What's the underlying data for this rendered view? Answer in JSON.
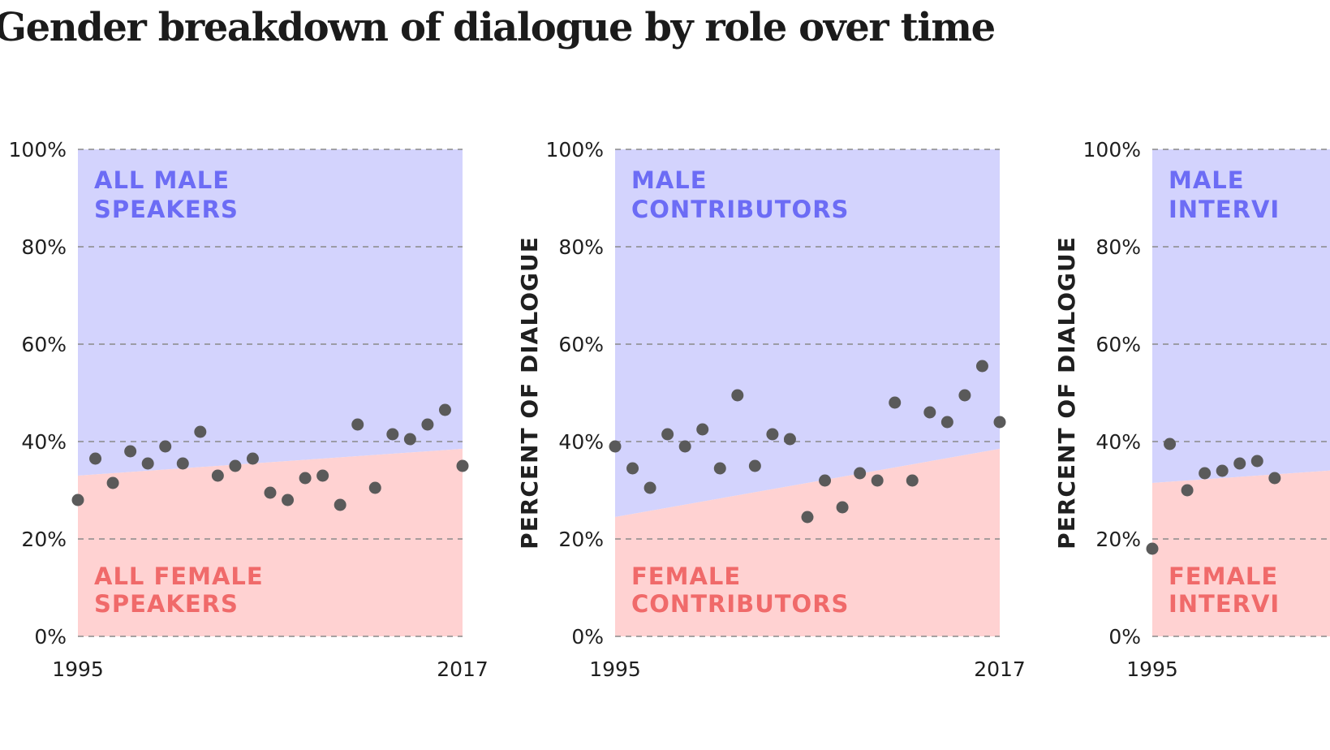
{
  "title": "Gender breakdown of dialogue by role over time",
  "colors": {
    "male_area": "#d3d3fd",
    "female_area": "#ffd2d2",
    "male_text": "#6c6cf5",
    "female_text": "#f06a6a",
    "dots": "#5a5a5a",
    "grid": "#8a8a8a",
    "text": "#1f1f1f"
  },
  "chart_data": [
    {
      "type": "scatter",
      "title": "",
      "xlabel": "",
      "ylabel": "",
      "x_ticks": [
        "1995",
        "2017"
      ],
      "y_ticks": [
        "0%",
        "20%",
        "40%",
        "60%",
        "80%",
        "100%"
      ],
      "xlim": [
        1995,
        2017
      ],
      "ylim": [
        0,
        100
      ],
      "grid": true,
      "male_label": [
        "ALL MALE",
        "SPEAKERS"
      ],
      "female_label": [
        "ALL FEMALE",
        "SPEAKERS"
      ],
      "trend_line": {
        "x": [
          1995,
          2017
        ],
        "y": [
          33,
          38.5
        ]
      },
      "series": [
        {
          "x": [
            1995,
            1996,
            1997,
            1998,
            1999,
            2000,
            2001,
            2002,
            2003,
            2004,
            2005,
            2006,
            2007,
            2008,
            2009,
            2010,
            2011,
            2012,
            2013,
            2014,
            2015,
            2016,
            2017
          ],
          "y": [
            28,
            36.5,
            31.5,
            38,
            35.5,
            39,
            35.5,
            42,
            33,
            35,
            36.5,
            29.5,
            28,
            32.5,
            33,
            27,
            43.5,
            30.5,
            41.5,
            40.5,
            43.5,
            46.5,
            35
          ]
        }
      ]
    },
    {
      "type": "scatter",
      "title": "",
      "xlabel": "",
      "ylabel": "PERCENT OF DIALOGUE",
      "x_ticks": [
        "1995",
        "2017"
      ],
      "y_ticks": [
        "0%",
        "20%",
        "40%",
        "60%",
        "80%",
        "100%"
      ],
      "xlim": [
        1995,
        2017
      ],
      "ylim": [
        0,
        100
      ],
      "grid": true,
      "male_label": [
        "MALE",
        "CONTRIBUTORS"
      ],
      "female_label": [
        "FEMALE",
        "CONTRIBUTORS"
      ],
      "trend_line": {
        "x": [
          1995,
          2017
        ],
        "y": [
          24.5,
          38.5
        ]
      },
      "series": [
        {
          "x": [
            1995,
            1996,
            1997,
            1998,
            1999,
            2000,
            2001,
            2002,
            2003,
            2004,
            2005,
            2006,
            2007,
            2008,
            2009,
            2010,
            2011,
            2012,
            2013,
            2014,
            2015,
            2016,
            2017
          ],
          "y": [
            39,
            34.5,
            30.5,
            41.5,
            39,
            42.5,
            34.5,
            49.5,
            35,
            41.5,
            40.5,
            24.5,
            32,
            26.5,
            33.5,
            32,
            48,
            32,
            46,
            44,
            49.5,
            55.5,
            44
          ]
        }
      ]
    },
    {
      "type": "scatter",
      "title": "",
      "xlabel": "",
      "ylabel": "PERCENT OF DIALOGUE",
      "x_ticks": [
        "1995"
      ],
      "y_ticks": [
        "0%",
        "20%",
        "40%",
        "60%",
        "80%",
        "100%"
      ],
      "xlim": [
        1995,
        2017
      ],
      "ylim": [
        0,
        100
      ],
      "grid": true,
      "male_label": [
        "MALE",
        "INTERVI"
      ],
      "female_label": [
        "FEMALE",
        "INTERVI"
      ],
      "trend_line": {
        "x": [
          1995,
          2017
        ],
        "y": [
          31.5,
          37
        ]
      },
      "series": [
        {
          "x": [
            1995,
            1996,
            1997,
            1998,
            1999,
            2000,
            2001,
            2002
          ],
          "y": [
            18,
            39.5,
            30,
            33.5,
            34,
            35.5,
            36,
            32.5
          ]
        }
      ]
    }
  ]
}
